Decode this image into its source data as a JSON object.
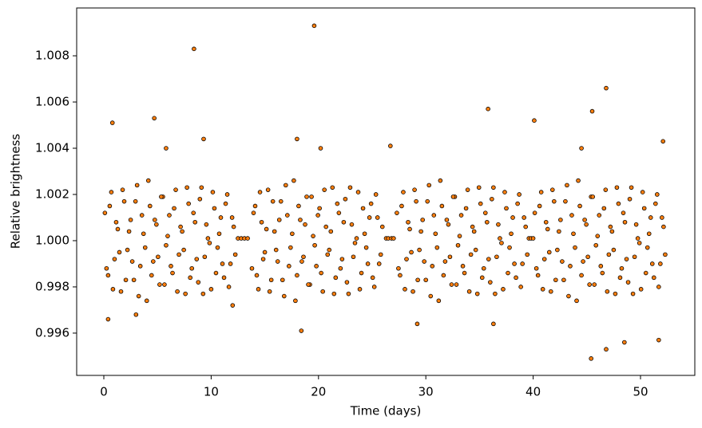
{
  "chart_data": {
    "type": "scatter",
    "xlabel": "Time (days)",
    "ylabel": "Relative brightness",
    "color": "#ff7f0e",
    "edgecolor": "#000000",
    "grid": false,
    "xlim": [
      -2.53,
      55.06
    ],
    "ylim": [
      0.99417,
      1.01007
    ],
    "xticks": [
      0,
      10,
      20,
      30,
      40,
      50
    ],
    "yticks": [
      0.996,
      0.998,
      {
        "value": 1.0,
        "label": "1.000"
      },
      1.002,
      1.004,
      1.006,
      1.008
    ],
    "x": [
      0.1,
      0.4,
      0.7,
      1.0,
      1.3,
      1.6,
      1.9,
      2.2,
      2.5,
      2.8,
      3.1,
      3.4,
      3.7,
      4.0,
      4.3,
      4.6,
      4.9,
      5.2,
      5.5,
      5.8,
      6.1,
      6.4,
      6.7,
      7.0,
      7.3,
      7.6,
      7.9,
      8.2,
      8.5,
      8.8,
      9.1,
      9.4,
      9.7,
      10.0,
      10.3,
      10.6,
      10.9,
      11.2,
      11.5,
      11.8,
      12.1,
      0.25,
      0.55,
      0.85,
      1.15,
      1.45,
      1.75,
      2.05,
      2.35,
      2.65,
      2.95,
      3.25,
      3.55,
      3.85,
      4.15,
      4.45,
      4.75,
      5.05,
      5.35,
      5.65,
      5.95,
      6.25,
      6.55,
      6.85,
      7.15,
      7.45,
      7.75,
      8.05,
      8.35,
      8.65,
      8.95,
      9.25,
      9.55,
      9.85,
      10.15,
      10.45,
      10.75,
      11.05,
      11.35,
      11.65,
      11.95,
      12.25,
      13.8,
      14.1,
      14.4,
      14.7,
      15.0,
      15.3,
      15.6,
      15.9,
      16.2,
      16.5,
      16.8,
      17.1,
      17.4,
      17.7,
      18.0,
      18.3,
      18.6,
      18.9,
      19.2,
      19.5,
      19.8,
      20.1,
      20.4,
      20.7,
      21.0,
      21.3,
      21.6,
      21.9,
      22.2,
      22.5,
      22.8,
      23.1,
      23.4,
      23.7,
      24.0,
      24.3,
      24.6,
      24.9,
      25.2,
      25.5,
      25.8,
      13.95,
      14.25,
      14.55,
      14.85,
      15.15,
      15.45,
      15.75,
      16.05,
      16.35,
      16.65,
      16.95,
      17.25,
      17.55,
      17.85,
      18.15,
      18.45,
      18.75,
      19.05,
      19.35,
      19.65,
      19.95,
      20.25,
      20.55,
      20.85,
      21.15,
      21.45,
      21.75,
      22.05,
      22.35,
      22.65,
      22.95,
      23.25,
      23.55,
      23.85,
      24.15,
      24.45,
      24.75,
      25.05,
      25.35,
      25.65,
      25.95,
      27.3,
      27.6,
      27.9,
      28.2,
      28.5,
      28.8,
      29.1,
      29.4,
      29.7,
      30.0,
      30.3,
      30.6,
      30.9,
      31.2,
      31.5,
      31.8,
      32.1,
      32.4,
      32.7,
      33.0,
      33.3,
      33.6,
      33.9,
      34.2,
      34.5,
      34.8,
      35.1,
      35.4,
      35.7,
      36.0,
      36.3,
      36.6,
      36.9,
      37.2,
      37.5,
      37.8,
      38.1,
      38.4,
      38.7,
      39.0,
      39.3,
      27.45,
      27.75,
      28.05,
      28.35,
      28.65,
      28.95,
      29.25,
      29.55,
      29.85,
      30.15,
      30.45,
      30.75,
      31.05,
      31.35,
      31.65,
      31.95,
      32.25,
      32.55,
      32.85,
      33.15,
      33.45,
      33.75,
      34.05,
      34.35,
      34.65,
      34.95,
      35.25,
      35.55,
      35.85,
      36.15,
      36.45,
      36.75,
      37.05,
      37.35,
      37.65,
      37.95,
      38.25,
      38.55,
      38.85,
      39.15,
      39.45,
      40.3,
      40.6,
      40.9,
      41.2,
      41.5,
      41.8,
      42.1,
      42.4,
      42.7,
      43.0,
      43.3,
      43.6,
      43.9,
      44.2,
      44.5,
      44.8,
      45.1,
      45.4,
      45.7,
      46.0,
      46.3,
      46.6,
      46.9,
      47.2,
      47.5,
      47.8,
      48.1,
      48.4,
      48.7,
      49.0,
      49.3,
      49.6,
      49.9,
      50.2,
      50.5,
      50.8,
      51.1,
      51.4,
      51.7,
      52.0,
      52.3,
      40.15,
      40.45,
      40.75,
      41.05,
      41.35,
      41.65,
      41.95,
      42.25,
      42.55,
      42.85,
      43.15,
      43.45,
      43.75,
      44.05,
      44.35,
      44.65,
      44.95,
      45.25,
      45.55,
      45.85,
      46.15,
      46.45,
      46.75,
      47.05,
      47.35,
      47.65,
      47.95,
      48.25,
      48.55,
      48.85,
      49.15,
      49.45,
      49.75,
      50.05,
      50.35,
      50.65,
      50.95,
      51.25,
      51.55,
      51.85,
      52.15,
      0.8,
      4.7,
      5.8,
      8.4,
      9.3,
      19.6,
      18.0,
      20.2,
      35.8,
      40.1,
      45.5,
      46.8,
      45.4,
      46.8,
      18.4,
      0.4,
      29.2,
      51.7,
      26.7,
      52.1,
      44.5,
      3.0,
      12.0,
      48.5,
      36.3,
      12.5,
      12.8,
      13.1,
      13.4,
      26.3,
      26.5,
      26.8,
      27.0,
      39.6,
      39.8,
      40.0
    ],
    "values": [
      1.0012,
      0.9985,
      1.0021,
      0.9992,
      1.0005,
      0.9978,
      1.0017,
      0.9996,
      1.0009,
      0.9983,
      1.0024,
      0.9989,
      1.0003,
      0.9974,
      1.0015,
      0.9991,
      1.0007,
      0.9981,
      1.0019,
      0.9998,
      1.0011,
      0.9986,
      1.0022,
      0.9994,
      1.0004,
      0.9977,
      1.0016,
      0.9988,
      1.0008,
      0.9982,
      1.0023,
      0.9993,
      1.0001,
      0.9979,
      1.0014,
      0.9997,
      1.001,
      0.9984,
      1.002,
      0.999,
      1.0006,
      0.9988,
      1.0015,
      0.9979,
      1.0008,
      0.9995,
      1.0022,
      0.9983,
      1.0004,
      0.9991,
      1.0017,
      0.9976,
      1.0011,
      0.9997,
      1.0026,
      0.9985,
      1.0009,
      0.9993,
      1.0019,
      0.9981,
      1.0002,
      0.9989,
      1.0014,
      0.9978,
      1.0006,
      0.9996,
      1.0023,
      0.9984,
      1.0012,
      0.9992,
      1.0018,
      0.9977,
      1.0007,
      0.9999,
      1.0021,
      0.9986,
      1.0003,
      0.999,
      1.0016,
      0.998,
      1.001,
      0.9994,
      0.9988,
      1.0015,
      0.9979,
      1.0008,
      0.9995,
      1.0022,
      0.9983,
      1.0004,
      0.9991,
      1.0017,
      0.9976,
      1.0011,
      0.9997,
      1.0026,
      0.9985,
      1.0009,
      0.9993,
      1.0019,
      0.9981,
      1.0002,
      0.9989,
      1.0014,
      0.9978,
      1.0006,
      0.9996,
      1.0023,
      0.9984,
      1.0012,
      0.9992,
      1.0018,
      0.9977,
      1.0007,
      0.9999,
      1.0021,
      0.9986,
      1.0003,
      0.999,
      1.0016,
      0.998,
      1.001,
      0.9994,
      1.0012,
      0.9985,
      1.0021,
      0.9992,
      1.0005,
      0.9978,
      1.0017,
      0.9996,
      1.0009,
      0.9983,
      1.0024,
      0.9989,
      1.0003,
      0.9974,
      1.0015,
      0.9991,
      1.0007,
      0.9981,
      1.0019,
      0.9998,
      1.0011,
      0.9986,
      1.0022,
      0.9994,
      1.0004,
      0.9977,
      1.0016,
      0.9988,
      1.0008,
      0.9982,
      1.0023,
      0.9993,
      1.0001,
      0.9979,
      1.0014,
      0.9997,
      1.001,
      0.9984,
      1.002,
      0.999,
      1.0006,
      1.0012,
      0.9985,
      1.0021,
      0.9992,
      1.0005,
      0.9978,
      1.0017,
      0.9996,
      1.0009,
      0.9983,
      1.0024,
      0.9989,
      1.0003,
      0.9974,
      1.0015,
      0.9991,
      1.0007,
      0.9981,
      1.0019,
      0.9998,
      1.0011,
      0.9986,
      1.0022,
      0.9994,
      1.0004,
      0.9977,
      1.0016,
      0.9988,
      1.0008,
      0.9982,
      1.0023,
      0.9993,
      1.0001,
      0.9979,
      1.0014,
      0.9997,
      1.001,
      0.9984,
      1.002,
      0.999,
      1.0006,
      0.9988,
      1.0015,
      0.9979,
      1.0008,
      0.9995,
      1.0022,
      0.9983,
      1.0004,
      0.9991,
      1.0017,
      0.9976,
      1.0011,
      0.9997,
      1.0026,
      0.9985,
      1.0009,
      0.9993,
      1.0019,
      0.9981,
      1.0002,
      0.9989,
      1.0014,
      0.9978,
      1.0006,
      0.9996,
      1.0023,
      0.9984,
      1.0012,
      0.9992,
      1.0018,
      0.9977,
      1.0007,
      0.9999,
      1.0021,
      0.9986,
      1.0003,
      0.999,
      1.0016,
      0.998,
      1.001,
      0.9994,
      0.9988,
      1.0015,
      0.9979,
      1.0008,
      0.9995,
      1.0022,
      0.9983,
      1.0004,
      0.9991,
      1.0017,
      0.9976,
      1.0011,
      0.9997,
      1.0026,
      0.9985,
      1.0009,
      0.9993,
      1.0019,
      0.9981,
      1.0002,
      0.9989,
      1.0014,
      0.9978,
      1.0006,
      0.9996,
      1.0023,
      0.9984,
      1.0012,
      0.9992,
      1.0018,
      0.9977,
      1.0007,
      0.9999,
      1.0021,
      0.9986,
      1.0003,
      0.999,
      1.0016,
      0.998,
      1.001,
      0.9994,
      1.0012,
      0.9985,
      1.0021,
      0.9992,
      1.0005,
      0.9978,
      1.0017,
      0.9996,
      1.0009,
      0.9983,
      1.0024,
      0.9989,
      1.0003,
      0.9974,
      1.0015,
      0.9991,
      1.0007,
      0.9981,
      1.0019,
      0.9998,
      1.0011,
      0.9986,
      1.0022,
      0.9994,
      1.0004,
      0.9977,
      1.0016,
      0.9988,
      1.0008,
      0.9982,
      1.0023,
      0.9993,
      1.0001,
      0.9979,
      1.0014,
      0.9997,
      1.001,
      0.9984,
      1.002,
      0.999,
      1.0006,
      1.0051,
      1.0053,
      1.004,
      1.0083,
      1.0044,
      1.0093,
      1.0044,
      1.004,
      1.0057,
      1.0052,
      1.0056,
      1.0066,
      0.9949,
      0.9953,
      0.9961,
      0.9966,
      0.9964,
      0.9957,
      1.0041,
      1.0043,
      1.004,
      0.9968,
      0.9972,
      0.9956,
      0.9964,
      1.0001,
      1.0001,
      1.0001,
      1.0001,
      1.0001,
      1.0001,
      1.0001,
      1.0001,
      1.0001,
      1.0001,
      1.0001
    ]
  }
}
